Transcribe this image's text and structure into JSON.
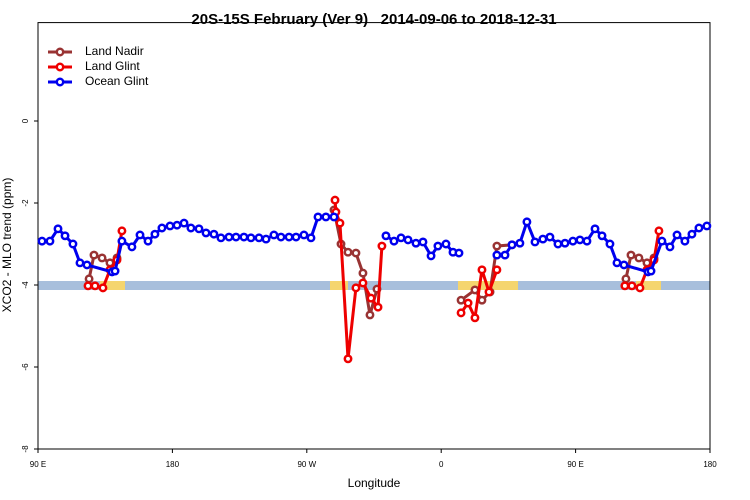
{
  "chart_data": {
    "type": "line",
    "title": "20S-15S February (Ver 9)   2014-09-06 to 2018-12-31",
    "xlabel": "Longitude",
    "ylabel": "XCO2 - MLO trend (ppm)",
    "xlim": [
      90,
      540
    ],
    "xticks": [
      {
        "value": 90,
        "label": "90 E"
      },
      180,
      {
        "value": 270,
        "label": "90 W"
      },
      {
        "value": 360,
        "label": "0"
      },
      {
        "value": 450,
        "label": "90 E"
      },
      {
        "value": 540,
        "label": "180"
      }
    ],
    "ylim": [
      -8,
      2.4
    ],
    "yticks": [
      -8,
      -6,
      -4,
      -2,
      0
    ],
    "legend": "top-left",
    "series": [
      {
        "name": "Land Nadir",
        "color": "#993333",
        "x": [
          124.2,
          127.5,
          132.9,
          138.2,
          142.9,
          null,
          288.2,
          292.9,
          297.6,
          302.9,
          307.6,
          312.3,
          317.0,
          null,
          373.3,
          382.6,
          387.3,
          392.7,
          397.3,
          407.4,
          null,
          483.7,
          487.1,
          492.4,
          497.8,
          502.5
        ],
        "values": [
          -3.85,
          -3.27,
          -3.34,
          -3.46,
          -3.34,
          null,
          -2.17,
          -3.0,
          -3.2,
          -3.22,
          -3.71,
          -4.73,
          -4.1,
          null,
          -4.37,
          -4.12,
          -4.37,
          -4.17,
          -3.05,
          -3.02,
          null,
          -3.85,
          -3.27,
          -3.34,
          -3.46,
          -3.34
        ]
      },
      {
        "name": "Land Glint",
        "color": "#ee0000",
        "x": [
          123.5,
          128.2,
          133.5,
          138.2,
          142.9,
          146.2,
          null,
          288.9,
          289.5,
          292.2,
          297.6,
          302.9,
          307.6,
          313.0,
          317.7,
          320.3,
          null,
          373.3,
          378.0,
          382.6,
          387.3,
          392.0,
          397.3,
          null,
          483.0,
          487.7,
          493.1,
          497.8,
          502.5,
          505.8
        ],
        "values": [
          -4.02,
          -4.02,
          -4.07,
          -3.63,
          -3.39,
          -2.68,
          null,
          -1.93,
          -2.22,
          -2.49,
          -5.8,
          -4.07,
          -3.95,
          -4.32,
          -4.54,
          -3.05,
          null,
          -4.68,
          -4.44,
          -4.8,
          -3.63,
          -4.17,
          -3.63,
          null,
          -4.02,
          -4.02,
          -4.07,
          -3.63,
          -3.39,
          -2.68
        ]
      },
      {
        "name": "Ocean Glint",
        "color": "#0000ee",
        "x": [
          92.7,
          98.0,
          103.4,
          108.1,
          113.4,
          118.1,
          122.8,
          139.6,
          141.6,
          146.2,
          152.9,
          158.3,
          163.7,
          168.3,
          173.0,
          178.4,
          183.1,
          187.8,
          192.4,
          197.8,
          202.5,
          207.8,
          212.5,
          217.9,
          222.6,
          227.9,
          232.6,
          238.0,
          242.7,
          248.0,
          252.7,
          258.1,
          262.8,
          268.1,
          272.8,
          277.5,
          282.8,
          288.2,
          null,
          323.0,
          328.4,
          333.1,
          337.8,
          343.1,
          347.8,
          353.2,
          357.8,
          363.2,
          367.9,
          371.9,
          null,
          397.3,
          402.7,
          407.4,
          412.7,
          417.4,
          422.8,
          428.1,
          432.8,
          438.2,
          442.9,
          448.2,
          452.9,
          457.6,
          463.0,
          467.7,
          473.0,
          477.7,
          482.4,
          498.5,
          500.5,
          507.8,
          513.2,
          517.9,
          523.2,
          527.9,
          532.6,
          537.9
        ],
        "values": [
          -2.93,
          -2.93,
          -2.63,
          -2.8,
          -3.0,
          -3.46,
          -3.51,
          -3.68,
          -3.66,
          -2.93,
          -3.07,
          -2.78,
          -2.93,
          -2.76,
          -2.61,
          -2.56,
          -2.54,
          -2.49,
          -2.61,
          -2.63,
          -2.73,
          -2.76,
          -2.85,
          -2.83,
          -2.83,
          -2.83,
          -2.85,
          -2.85,
          -2.88,
          -2.78,
          -2.83,
          -2.83,
          -2.83,
          -2.78,
          -2.85,
          -2.34,
          -2.34,
          -2.34,
          null,
          -2.8,
          -2.93,
          -2.85,
          -2.9,
          -2.98,
          -2.95,
          -3.29,
          -3.05,
          -3.0,
          -3.2,
          -3.22,
          null,
          -3.27,
          -3.27,
          -3.02,
          -2.98,
          -2.46,
          -2.95,
          -2.88,
          -2.83,
          -3.0,
          -2.98,
          -2.93,
          -2.9,
          -2.93,
          -2.63,
          -2.8,
          -3.0,
          -3.46,
          -3.51,
          -3.68,
          -3.66,
          -2.93,
          -3.07,
          -2.78,
          -2.93,
          -2.76,
          -2.61,
          -2.56
        ]
      }
    ]
  }
}
